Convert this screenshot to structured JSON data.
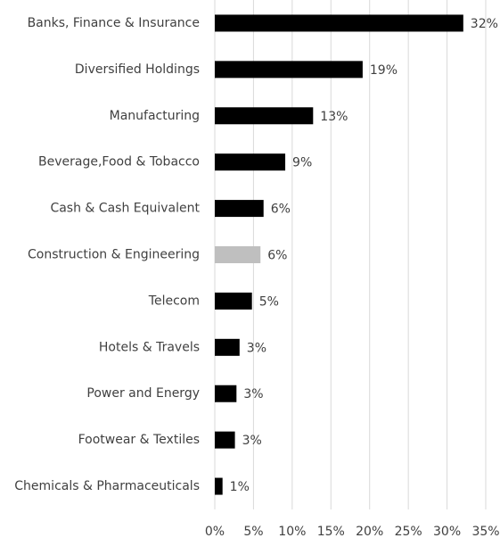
{
  "chart_data": {
    "type": "hbar",
    "categories": [
      "Banks, Finance & Insurance",
      "Diversified Holdings",
      "Manufacturing",
      "Beverage,Food & Tobacco",
      "Cash & Cash Equivalent",
      "Construction & Engineering",
      "Telecom",
      "Hotels & Travels",
      "Power and Energy",
      "Footwear & Textiles",
      "Chemicals & Pharmaceuticals"
    ],
    "values": [
      32.1,
      19.1,
      12.7,
      9.1,
      6.3,
      5.9,
      4.8,
      3.2,
      2.8,
      2.6,
      1.0
    ],
    "value_labels": [
      "32%",
      "19%",
      "13%",
      "9%",
      "6%",
      "6%",
      "5%",
      "3%",
      "3%",
      "3%",
      "1%"
    ],
    "colors": [
      "#000000",
      "#000000",
      "#000000",
      "#000000",
      "#000000",
      "#bfbfbf",
      "#000000",
      "#000000",
      "#000000",
      "#000000",
      "#000000"
    ],
    "xlim": [
      0,
      35
    ],
    "xticks": [
      {
        "value": 0,
        "label": "0%"
      },
      {
        "value": 5,
        "label": "5%"
      },
      {
        "value": 10,
        "label": "10%"
      },
      {
        "value": 15,
        "label": "15%"
      },
      {
        "value": 20,
        "label": "20%"
      },
      {
        "value": 25,
        "label": "25%"
      },
      {
        "value": 30,
        "label": "30%"
      },
      {
        "value": 35,
        "label": "35%"
      }
    ],
    "grid": true
  }
}
